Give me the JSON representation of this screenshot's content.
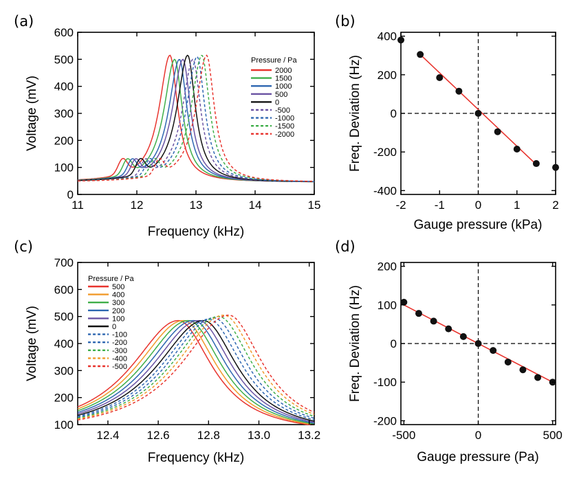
{
  "chart_data": [
    {
      "panel": "(a)",
      "type": "line",
      "xlabel": "Frequency (kHz)",
      "ylabel": "Voltage (mV)",
      "xlim": [
        11,
        15
      ],
      "ylim": [
        0,
        600
      ],
      "xticks": [
        11,
        12,
        13,
        14,
        15
      ],
      "yticks": [
        0,
        100,
        200,
        300,
        400,
        500,
        600
      ],
      "legend_title": "Pressure / Pa",
      "series": [
        {
          "name": "2000",
          "color": "#e8342e",
          "dashed": false,
          "peak_x": 12.56,
          "peak_y": 515
        },
        {
          "name": "1500",
          "color": "#3fae49",
          "dashed": false,
          "peak_x": 12.64,
          "peak_y": 500
        },
        {
          "name": "1000",
          "color": "#2e67b1",
          "dashed": false,
          "peak_x": 12.72,
          "peak_y": 500
        },
        {
          "name": "500",
          "color": "#6a53a3",
          "dashed": false,
          "peak_x": 12.78,
          "peak_y": 500
        },
        {
          "name": "0",
          "color": "#111111",
          "dashed": false,
          "peak_x": 12.86,
          "peak_y": 515
        },
        {
          "name": "-500",
          "color": "#6a53a3",
          "dashed": true,
          "peak_x": 12.95,
          "peak_y": 500
        },
        {
          "name": "-1000",
          "color": "#2e67b1",
          "dashed": true,
          "peak_x": 13.02,
          "peak_y": 510
        },
        {
          "name": "-1500",
          "color": "#3fae49",
          "dashed": true,
          "peak_x": 13.1,
          "peak_y": 515
        },
        {
          "name": "-2000",
          "color": "#e8342e",
          "dashed": true,
          "peak_x": 13.18,
          "peak_y": 515
        }
      ]
    },
    {
      "panel": "(b)",
      "type": "scatter",
      "xlabel": "Gauge pressure (kPa)",
      "ylabel": "Freq.  Deviation (Hz)",
      "xlim": [
        -2,
        2
      ],
      "ylim": [
        -420,
        420
      ],
      "xticks": [
        -2,
        -1,
        0,
        1,
        2
      ],
      "yticks": [
        -400,
        -200,
        0,
        200,
        400
      ],
      "x": [
        -2,
        -1.5,
        -1,
        -0.5,
        0,
        0.5,
        1,
        1.5,
        2
      ],
      "y": [
        380,
        305,
        185,
        115,
        0,
        -95,
        -185,
        -260,
        -280
      ],
      "fit": {
        "x": [
          -1.5,
          1.5
        ],
        "y": [
          305,
          -265
        ],
        "color": "#e8342e"
      }
    },
    {
      "panel": "(c)",
      "type": "line",
      "xlabel": "Frequency (kHz)",
      "ylabel": "Voltage (mV)",
      "xlim": [
        12.28,
        13.22
      ],
      "ylim": [
        100,
        700
      ],
      "xticks": [
        12.4,
        12.6,
        12.8,
        13.0,
        13.2
      ],
      "xtick_labels": [
        "12.4",
        "12.6",
        "12.8",
        "13.0",
        "13.2"
      ],
      "yticks": [
        100,
        200,
        300,
        400,
        500,
        600,
        700
      ],
      "legend_title": "Pressure / Pa",
      "series": [
        {
          "name": "500",
          "color": "#e8342e",
          "dashed": false,
          "peak_x": 12.68,
          "peak_y": 485
        },
        {
          "name": "400",
          "color": "#f09a2a",
          "dashed": false,
          "peak_x": 12.7,
          "peak_y": 485
        },
        {
          "name": "300",
          "color": "#3fae49",
          "dashed": false,
          "peak_x": 12.72,
          "peak_y": 485
        },
        {
          "name": "200",
          "color": "#2e67b1",
          "dashed": false,
          "peak_x": 12.74,
          "peak_y": 485
        },
        {
          "name": "100",
          "color": "#6a53a3",
          "dashed": false,
          "peak_x": 12.76,
          "peak_y": 485
        },
        {
          "name": "0",
          "color": "#111111",
          "dashed": false,
          "peak_x": 12.78,
          "peak_y": 485
        },
        {
          "name": "-100",
          "color": "#2e67b1",
          "dashed": true,
          "peak_x": 12.8,
          "peak_y": 490
        },
        {
          "name": "-200",
          "color": "#2e67b1",
          "dashed": true,
          "peak_x": 12.82,
          "peak_y": 495
        },
        {
          "name": "-300",
          "color": "#3fae49",
          "dashed": true,
          "peak_x": 12.84,
          "peak_y": 500
        },
        {
          "name": "-400",
          "color": "#f09a2a",
          "dashed": true,
          "peak_x": 12.86,
          "peak_y": 505
        },
        {
          "name": "-500",
          "color": "#e8342e",
          "dashed": true,
          "peak_x": 12.88,
          "peak_y": 505
        }
      ]
    },
    {
      "panel": "(d)",
      "type": "scatter",
      "xlabel": "Gauge pressure (Pa)",
      "ylabel": "Freq.  Deviation (Hz)",
      "xlim": [
        -520,
        520
      ],
      "ylim": [
        -210,
        210
      ],
      "xticks": [
        -500,
        0,
        500
      ],
      "yticks": [
        -200,
        -100,
        0,
        100,
        200
      ],
      "x": [
        -500,
        -400,
        -300,
        -200,
        -100,
        0,
        100,
        200,
        300,
        400,
        500
      ],
      "y": [
        107,
        78,
        58,
        38,
        18,
        0,
        -18,
        -48,
        -68,
        -88,
        -100
      ],
      "fit": {
        "x": [
          -520,
          520
        ],
        "y": [
          104,
          -104
        ],
        "color": "#e8342e"
      }
    }
  ]
}
